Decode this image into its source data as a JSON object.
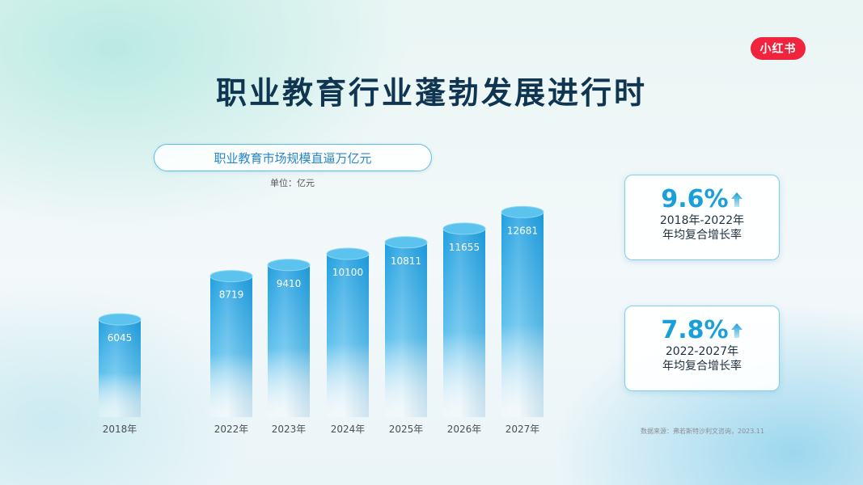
{
  "brand": {
    "logo_text": "小红书",
    "color": "#f0243c"
  },
  "title": "职业教育行业蓬勃发展进行时",
  "subtitle": "职业教育市场规模直逼万亿元",
  "unit_label": "单位：亿元",
  "chart_data": {
    "type": "bar",
    "style": "cylinder",
    "categories": [
      "2018年",
      "2022年",
      "2023年",
      "2024年",
      "2025年",
      "2026年",
      "2027年"
    ],
    "values": [
      6045,
      8719,
      9410,
      10100,
      10811,
      11655,
      12681
    ],
    "data_labels": [
      "6045",
      "8719",
      "9410",
      "10100",
      "10811",
      "11655",
      "12681"
    ],
    "title": "职业教育市场规模直逼万亿元",
    "ylabel": "单位：亿元",
    "grid": false,
    "colors": {
      "bar_top": "#2aa6e4",
      "bar_bottom": "#ffffff",
      "cap": "#5cc3ef"
    }
  },
  "stats": [
    {
      "value": "9.6%",
      "period": "2018年-2022年",
      "desc": "年均复合增长率",
      "icon": "up-arrow-icon"
    },
    {
      "value": "7.8%",
      "period": "2022-2027年",
      "desc": "年均复合增长率",
      "icon": "up-arrow-icon"
    }
  ],
  "source": "数据来源：弗若斯特沙利文咨询，2023.11",
  "accent_color": "#1b9fd8"
}
